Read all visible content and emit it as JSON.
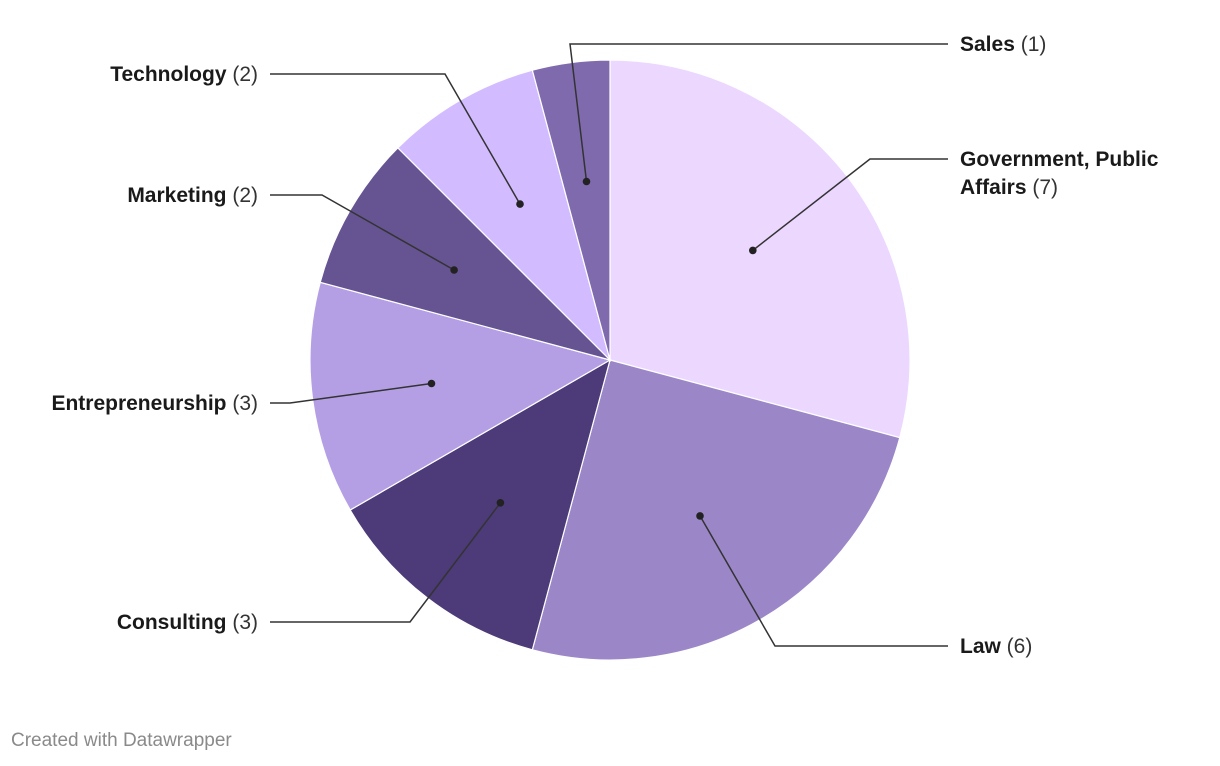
{
  "chart_data": {
    "type": "pie",
    "start_angle_deg": 0,
    "direction": "clockwise",
    "slices": [
      {
        "label": "Government, Public Affairs",
        "label_lines": [
          "Government, Public",
          "Affairs"
        ],
        "count_text": "(7)",
        "value": 7,
        "color": "#ecd7ff"
      },
      {
        "label": "Law",
        "label_lines": [
          "Law"
        ],
        "count_text": "(6)",
        "value": 6,
        "color": "#9b86c8"
      },
      {
        "label": "Consulting",
        "label_lines": [
          "Consulting"
        ],
        "count_text": "(3)",
        "value": 3,
        "color": "#4d3a78"
      },
      {
        "label": "Entrepreneurship",
        "label_lines": [
          "Entrepreneurship"
        ],
        "count_text": "(3)",
        "value": 3,
        "color": "#b49fe5"
      },
      {
        "label": "Marketing",
        "label_lines": [
          "Marketing"
        ],
        "count_text": "(2)",
        "value": 2,
        "color": "#665392"
      },
      {
        "label": "Technology",
        "label_lines": [
          "Technology"
        ],
        "count_text": "(2)",
        "value": 2,
        "color": "#d2bcff"
      },
      {
        "label": "Sales",
        "label_lines": [
          "Sales"
        ],
        "count_text": "(1)",
        "value": 1,
        "color": "#7f6aad"
      }
    ]
  },
  "footer": {
    "credit": "Created with Datawrapper"
  }
}
